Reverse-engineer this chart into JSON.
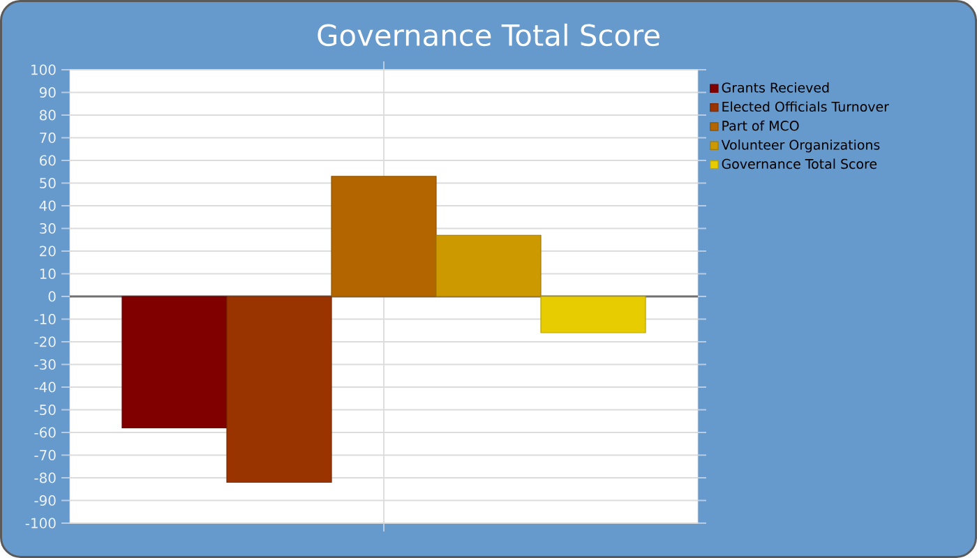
{
  "chart_data": {
    "type": "bar",
    "title": "Governance Total Score",
    "categories": [
      null
    ],
    "series": [
      {
        "name": "Grants Recieved",
        "color": "#800000",
        "values": [
          -58
        ]
      },
      {
        "name": "Elected Officials Turnover",
        "color": "#993300",
        "values": [
          -82
        ]
      },
      {
        "name": "Part of MCO",
        "color": "#b36600",
        "values": [
          53
        ]
      },
      {
        "name": "Volunteer Organizations",
        "color": "#cc9900",
        "values": [
          27
        ]
      },
      {
        "name": "Governance Total Score",
        "color": "#e6cc00",
        "values": [
          -16
        ]
      }
    ],
    "ylim": [
      -100,
      100
    ],
    "yticks": [
      -100,
      -90,
      -80,
      -70,
      -60,
      -50,
      -40,
      -30,
      -20,
      -10,
      0,
      10,
      20,
      30,
      40,
      50,
      60,
      70,
      80,
      90,
      100
    ],
    "grid": true,
    "legend": "top right"
  }
}
